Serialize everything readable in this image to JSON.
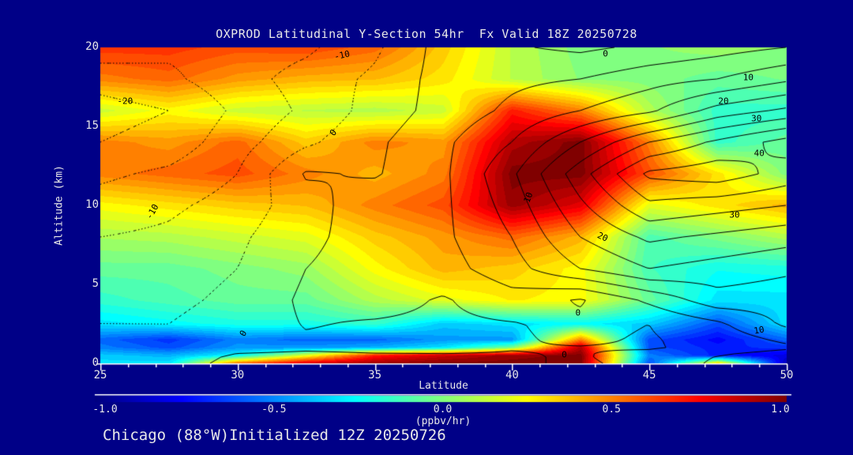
{
  "title": "OXPROD Latitudinal Y-Section 54hr  Fx Valid 18Z 20250728",
  "footer": "Chicago (88°W)Initialized 12Z 20250726",
  "colors": {
    "background": "#000087",
    "text": "#E8E8E8",
    "axis": "#FFFFFF",
    "contour_line": "#000000"
  },
  "axes": {
    "x": {
      "title": "Latitude",
      "min": 25,
      "max": 50,
      "major_tick_labels": [
        "25",
        "30",
        "35",
        "40",
        "45",
        "50"
      ],
      "major_tick_values": [
        25,
        30,
        35,
        40,
        45,
        50
      ],
      "minor_step": 1
    },
    "y": {
      "title": "Altitude (km)",
      "min": 0,
      "max": 20,
      "major_tick_labels": [
        "20",
        "15",
        "10",
        "5",
        "0"
      ],
      "major_tick_values": [
        20,
        15,
        10,
        5,
        0
      ]
    }
  },
  "colorbar": {
    "min": -1.0,
    "max": 1.0,
    "tick_labels": [
      "-1.0",
      "-0.5",
      "0.0",
      "0.5",
      "1.0"
    ],
    "tick_values": [
      -1.0,
      -0.5,
      0.0,
      0.5,
      1.0
    ],
    "unit_label": "(ppbv/hr)",
    "colormap": "jet"
  },
  "chart_data": {
    "type": "heatmap",
    "title": "OXPROD Latitudinal Y-Section 54hr  Fx Valid 18Z 20250728",
    "xlabel": "Latitude",
    "ylabel": "Altitude (km)",
    "xlim": [
      25,
      50
    ],
    "ylim": [
      0,
      20
    ],
    "fill_units": "ppbv/hr",
    "fill_range": [
      -1.0,
      1.0
    ],
    "fill_band_step": 0.05,
    "lats": [
      25,
      27.5,
      30,
      32.5,
      35,
      37.5,
      40,
      42.5,
      45,
      47.5,
      50
    ],
    "alts": [
      0,
      0.5,
      1,
      1.5,
      2.5,
      4,
      6,
      8,
      10,
      12,
      14,
      16,
      18,
      20
    ],
    "row_order": "altitude ascending",
    "fill_values": [
      [
        -0.3,
        -0.3,
        0.55,
        0.85,
        0.95,
        1.0,
        1.0,
        1.0,
        -0.6,
        0.35,
        -0.9
      ],
      [
        -0.35,
        -0.4,
        -0.25,
        0.2,
        0.7,
        0.85,
        0.95,
        1.0,
        -0.5,
        -0.7,
        -0.8
      ],
      [
        -0.5,
        -0.6,
        -0.45,
        -0.45,
        -0.4,
        -0.3,
        0.0,
        0.9,
        -0.6,
        -0.7,
        -0.65
      ],
      [
        -0.55,
        -0.65,
        -0.5,
        -0.55,
        -0.55,
        -0.45,
        -0.45,
        0.5,
        -0.6,
        -0.75,
        -0.55
      ],
      [
        -0.3,
        -0.25,
        -0.2,
        -0.2,
        -0.15,
        -0.35,
        -0.3,
        -0.25,
        -0.35,
        -0.6,
        -0.3
      ],
      [
        -0.15,
        -0.1,
        -0.05,
        -0.05,
        0.1,
        0.2,
        0.28,
        0.25,
        -0.05,
        -0.3,
        -0.3
      ],
      [
        -0.05,
        -0.05,
        0.0,
        0.05,
        0.25,
        0.4,
        0.35,
        0.25,
        -0.12,
        -0.22,
        -0.2
      ],
      [
        0.08,
        0.1,
        0.15,
        0.2,
        0.35,
        0.45,
        0.55,
        0.4,
        -0.1,
        0.0,
        0.1
      ],
      [
        0.25,
        0.3,
        0.35,
        0.38,
        0.5,
        0.6,
        0.95,
        0.8,
        0.2,
        0.3,
        0.4
      ],
      [
        0.5,
        0.55,
        0.6,
        0.5,
        0.4,
        0.5,
        1.0,
        1.0,
        0.6,
        0.3,
        0.0
      ],
      [
        0.5,
        0.45,
        0.55,
        0.35,
        0.5,
        0.45,
        0.9,
        1.0,
        0.5,
        -0.15,
        -0.05
      ],
      [
        0.15,
        0.25,
        0.15,
        0.12,
        0.1,
        0.15,
        0.7,
        0.5,
        0.1,
        -0.15,
        -0.15
      ],
      [
        0.5,
        0.55,
        0.45,
        0.4,
        0.38,
        0.3,
        0.12,
        0.02,
        0.0,
        -0.05,
        -0.02
      ],
      [
        0.65,
        0.65,
        0.6,
        0.62,
        0.55,
        0.35,
        0.12,
        0.0,
        0.02,
        0.05,
        0.02
      ]
    ],
    "overlay_contours": {
      "levels": [
        -25,
        -20,
        -15,
        -10,
        -5,
        0,
        5,
        10,
        15,
        20,
        25,
        30,
        35,
        40
      ],
      "labeled_levels": [
        -20,
        -10,
        0,
        10,
        20,
        30,
        40
      ],
      "negative_linestyle": "dotted",
      "positive_linestyle": "solid",
      "values": [
        [
          -2.5,
          -1.5,
          1.0,
          1.5,
          1.0,
          0.5,
          0.5,
          -0.5,
          1.0,
          6.0,
          9.0
        ],
        [
          -3.0,
          -2.0,
          0.5,
          1.0,
          0.5,
          0.3,
          0.3,
          -0.3,
          1.5,
          5.0,
          8.0
        ],
        [
          -4.0,
          -4.0,
          -1.5,
          -0.8,
          -1.2,
          -1.0,
          -0.2,
          -0.2,
          -0.5,
          1.5,
          4.0
        ],
        [
          -4.0,
          -4.5,
          -2.0,
          -0.5,
          -1.0,
          -1.5,
          -0.5,
          0.8,
          -0.5,
          2.0,
          6.0
        ],
        [
          -5.0,
          -5.0,
          -3.0,
          0.3,
          -0.5,
          -1.0,
          -0.3,
          1.2,
          0.0,
          4.0,
          11.0
        ],
        [
          -6.0,
          -6.0,
          -4.0,
          1.0,
          2.0,
          -0.5,
          3.0,
          -0.5,
          6.0,
          13.0,
          12.0
        ],
        [
          -8.0,
          -7.0,
          -5.0,
          0.0,
          2.0,
          3.0,
          8.0,
          15.0,
          20.0,
          18.0,
          16.0
        ],
        [
          -10.0,
          -9.0,
          -6.0,
          -1.0,
          2.0,
          4.0,
          10.0,
          20.0,
          26.0,
          24.0,
          22.0
        ],
        [
          -13.0,
          -11.0,
          -8.0,
          -2.0,
          3.0,
          4.0,
          12.0,
          24.0,
          34.0,
          32.0,
          30.0
        ],
        [
          -16.0,
          -14.0,
          -10.0,
          0.5,
          -0.5,
          4.0,
          14.0,
          28.0,
          41.0,
          43.0,
          38.0
        ],
        [
          -20.0,
          -18.0,
          -12.0,
          -6.0,
          -1.0,
          4.0,
          10.0,
          20.0,
          30.0,
          36.0,
          42.0
        ],
        [
          -22.0,
          -20.0,
          -14.0,
          -9.0,
          -3.0,
          2.0,
          6.0,
          10.0,
          14.0,
          22.0,
          26.0
        ],
        [
          -18.0,
          -16.0,
          -12.0,
          -8.0,
          -4.0,
          2.0,
          4.0,
          5.0,
          8.0,
          10.0,
          14.0
        ],
        [
          -12.0,
          -14.0,
          -13.0,
          -11.0,
          -6.0,
          2.0,
          0.5,
          -1.0,
          1.0,
          3.0,
          5.0
        ]
      ]
    },
    "contour_labels": [
      {
        "text": "-10",
        "lat": 33.8,
        "alt": 19.5,
        "rot": -12
      },
      {
        "text": "0",
        "lat": 43.4,
        "alt": 19.6,
        "rot": 0
      },
      {
        "text": "10",
        "lat": 48.6,
        "alt": 18.1,
        "rot": 0
      },
      {
        "text": "20",
        "lat": 47.7,
        "alt": 16.6,
        "rot": 0
      },
      {
        "text": "30",
        "lat": 48.9,
        "alt": 15.5,
        "rot": 0
      },
      {
        "text": "40",
        "lat": 49.0,
        "alt": 13.3,
        "rot": 0
      },
      {
        "text": "-20",
        "lat": 25.9,
        "alt": 16.6,
        "rot": 0
      },
      {
        "text": "0",
        "lat": 33.5,
        "alt": 14.6,
        "rot": -50
      },
      {
        "text": "-10",
        "lat": 26.9,
        "alt": 9.6,
        "rot": -60
      },
      {
        "text": "10",
        "lat": 40.6,
        "alt": 10.5,
        "rot": -70
      },
      {
        "text": "30",
        "lat": 48.1,
        "alt": 9.4,
        "rot": 0
      },
      {
        "text": "20",
        "lat": 43.3,
        "alt": 8.0,
        "rot": 25
      },
      {
        "text": "0",
        "lat": 42.4,
        "alt": 3.2,
        "rot": 0
      },
      {
        "text": "10",
        "lat": 49.0,
        "alt": 2.1,
        "rot": -10
      },
      {
        "text": "0",
        "lat": 41.9,
        "alt": 0.55,
        "rot": 0
      },
      {
        "text": "0",
        "lat": 30.2,
        "alt": 1.9,
        "rot": -60
      }
    ]
  }
}
